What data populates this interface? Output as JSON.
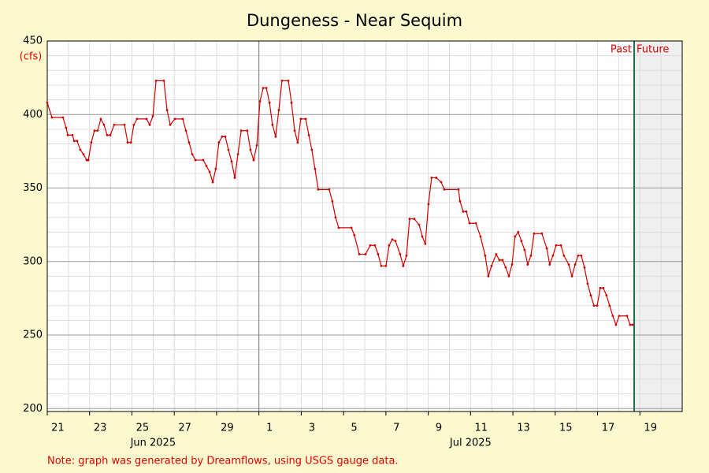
{
  "chart_data": {
    "type": "line",
    "title": "Dungeness - Near Sequim",
    "y_unit": "(cfs)",
    "note": "Note: graph was generated by Dreamflows, using USGS gauge data.",
    "xlim": [
      20,
      50
    ],
    "ylim": [
      198,
      450
    ],
    "yticks": [
      200,
      250,
      300,
      350,
      400,
      450
    ],
    "xticks": [
      {
        "value": 20,
        "label": "21"
      },
      {
        "value": 22,
        "label": "23"
      },
      {
        "value": 24,
        "label": "25"
      },
      {
        "value": 26,
        "label": "27"
      },
      {
        "value": 28,
        "label": "29"
      },
      {
        "value": 30,
        "label": "1"
      },
      {
        "value": 32,
        "label": "3"
      },
      {
        "value": 34,
        "label": "5"
      },
      {
        "value": 36,
        "label": "7"
      },
      {
        "value": 38,
        "label": "9"
      },
      {
        "value": 40,
        "label": "11"
      },
      {
        "value": 42,
        "label": "13"
      },
      {
        "value": 44,
        "label": "15"
      },
      {
        "value": 46,
        "label": "17"
      },
      {
        "value": 48,
        "label": "19"
      }
    ],
    "month_labels": [
      {
        "value": 25,
        "label": "Jun 2025"
      },
      {
        "value": 40,
        "label": "Jul 2025"
      }
    ],
    "month_boundary": 30,
    "now": 47.73,
    "past_label": "Past",
    "future_label": "Future",
    "grid": true,
    "color": "#d00000",
    "x": [
      20.0,
      20.22,
      20.74,
      20.89,
      20.97,
      21.19,
      21.27,
      21.41,
      21.56,
      21.71,
      21.86,
      21.94,
      22.08,
      22.23,
      22.38,
      22.53,
      22.68,
      22.83,
      22.98,
      23.16,
      23.65,
      23.8,
      23.95,
      24.09,
      24.24,
      24.69,
      24.84,
      24.99,
      25.14,
      25.51,
      25.66,
      25.81,
      26.03,
      26.4,
      26.55,
      26.7,
      26.85,
      27.0,
      27.37,
      27.52,
      27.67,
      27.82,
      27.96,
      28.11,
      28.26,
      28.41,
      28.56,
      28.71,
      28.86,
      29.01,
      29.16,
      29.45,
      29.6,
      29.75,
      29.9,
      30.05,
      30.2,
      30.35,
      30.5,
      30.64,
      30.79,
      30.94,
      31.09,
      31.39,
      31.54,
      31.69,
      31.83,
      31.98,
      32.21,
      32.36,
      32.5,
      32.65,
      32.8,
      33.32,
      33.47,
      33.62,
      33.77,
      34.37,
      34.51,
      34.74,
      35.04,
      35.26,
      35.48,
      35.63,
      35.78,
      36.0,
      36.15,
      36.3,
      36.45,
      36.67,
      36.82,
      36.97,
      37.12,
      37.34,
      37.57,
      37.72,
      37.86,
      38.01,
      38.16,
      38.38,
      38.61,
      38.76,
      39.43,
      39.5,
      39.65,
      39.8,
      39.95,
      40.25,
      40.47,
      40.69,
      40.84,
      40.99,
      41.21,
      41.36,
      41.51,
      41.66,
      41.81,
      41.96,
      42.1,
      42.25,
      42.4,
      42.55,
      42.7,
      42.85,
      43.0,
      43.37,
      43.6,
      43.74,
      43.89,
      44.04,
      44.27,
      44.41,
      44.64,
      44.79,
      44.94,
      45.08,
      45.23,
      45.38,
      45.53,
      45.68,
      45.83,
      45.98,
      46.13,
      46.27,
      46.42,
      46.57,
      46.72,
      46.87,
      47.02,
      47.39,
      47.54,
      47.65
    ],
    "values": [
      408,
      398,
      398,
      391,
      386,
      386,
      382,
      382,
      376,
      373,
      369,
      369,
      381,
      389,
      389,
      397,
      393,
      386,
      386,
      393,
      393,
      381,
      381,
      393,
      397,
      397,
      393,
      399,
      423,
      423,
      403,
      393,
      397,
      397,
      389,
      381,
      373,
      369,
      369,
      365,
      361,
      354,
      363,
      381,
      385,
      385,
      376,
      368,
      357,
      373,
      389,
      389,
      376,
      369,
      379,
      409,
      418,
      418,
      408,
      393,
      385,
      403,
      423,
      423,
      408,
      389,
      381,
      397,
      397,
      386,
      376,
      363,
      349,
      349,
      341,
      330,
      323,
      323,
      318,
      305,
      305,
      311,
      311,
      305,
      297,
      297,
      311,
      315,
      314,
      305,
      297,
      304,
      329,
      329,
      325,
      317,
      312,
      339,
      357,
      357,
      354,
      349,
      349,
      341,
      334,
      334,
      326,
      326,
      317,
      304,
      290,
      297,
      305,
      301,
      301,
      296,
      290,
      298,
      317,
      320,
      314,
      308,
      298,
      304,
      319,
      319,
      309,
      298,
      304,
      311,
      311,
      304,
      298,
      290,
      298,
      304,
      304,
      296,
      285,
      277,
      270,
      270,
      282,
      282,
      277,
      270,
      263,
      257,
      263,
      263,
      257,
      257
    ]
  }
}
